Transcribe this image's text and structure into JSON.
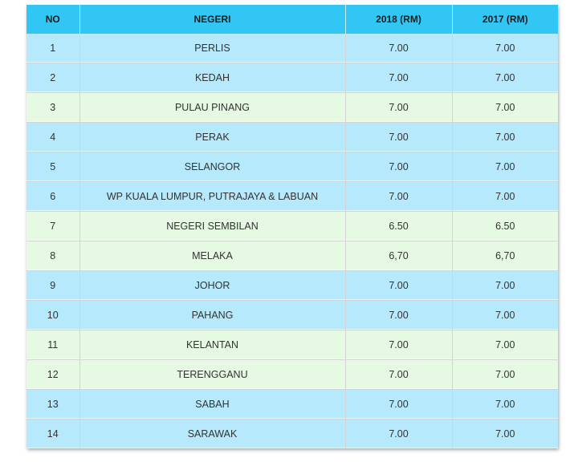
{
  "table": {
    "headers": {
      "no": "NO",
      "negeri": "NEGERI",
      "y2018": "2018 (RM)",
      "y2017": "2017 (RM)"
    },
    "colors": {
      "header": "#32c6f4",
      "row_blue": "#b5e9fb",
      "row_green": "#e6f9e2"
    },
    "rows": [
      {
        "no": "1",
        "negeri": "PERLIS",
        "y2018": "7.00",
        "y2017": "7.00",
        "tone": "blue"
      },
      {
        "no": "2",
        "negeri": "KEDAH",
        "y2018": "7.00",
        "y2017": "7.00",
        "tone": "blue"
      },
      {
        "no": "3",
        "negeri": "PULAU PINANG",
        "y2018": "7.00",
        "y2017": "7.00",
        "tone": "green"
      },
      {
        "no": "4",
        "negeri": "PERAK",
        "y2018": "7.00",
        "y2017": "7.00",
        "tone": "blue"
      },
      {
        "no": "5",
        "negeri": "SELANGOR",
        "y2018": "7.00",
        "y2017": "7.00",
        "tone": "blue"
      },
      {
        "no": "6",
        "negeri": "WP KUALA LUMPUR, PUTRAJAYA & LABUAN",
        "y2018": "7.00",
        "y2017": "7.00",
        "tone": "blue"
      },
      {
        "no": "7",
        "negeri": "NEGERI SEMBILAN",
        "y2018": "6.50",
        "y2017": "6.50",
        "tone": "green"
      },
      {
        "no": "8",
        "negeri": "MELAKA",
        "y2018": "6,70",
        "y2017": "6,70",
        "tone": "green"
      },
      {
        "no": "9",
        "negeri": "JOHOR",
        "y2018": "7.00",
        "y2017": "7.00",
        "tone": "blue"
      },
      {
        "no": "10",
        "negeri": "PAHANG",
        "y2018": "7.00",
        "y2017": "7.00",
        "tone": "blue"
      },
      {
        "no": "11",
        "negeri": "KELANTAN",
        "y2018": "7.00",
        "y2017": "7.00",
        "tone": "green"
      },
      {
        "no": "12",
        "negeri": "TERENGGANU",
        "y2018": "7.00",
        "y2017": "7.00",
        "tone": "green"
      },
      {
        "no": "13",
        "negeri": "SABAH",
        "y2018": "7.00",
        "y2017": "7.00",
        "tone": "blue"
      },
      {
        "no": "14",
        "negeri": "SARAWAK",
        "y2018": "7.00",
        "y2017": "7.00",
        "tone": "blue"
      }
    ]
  }
}
